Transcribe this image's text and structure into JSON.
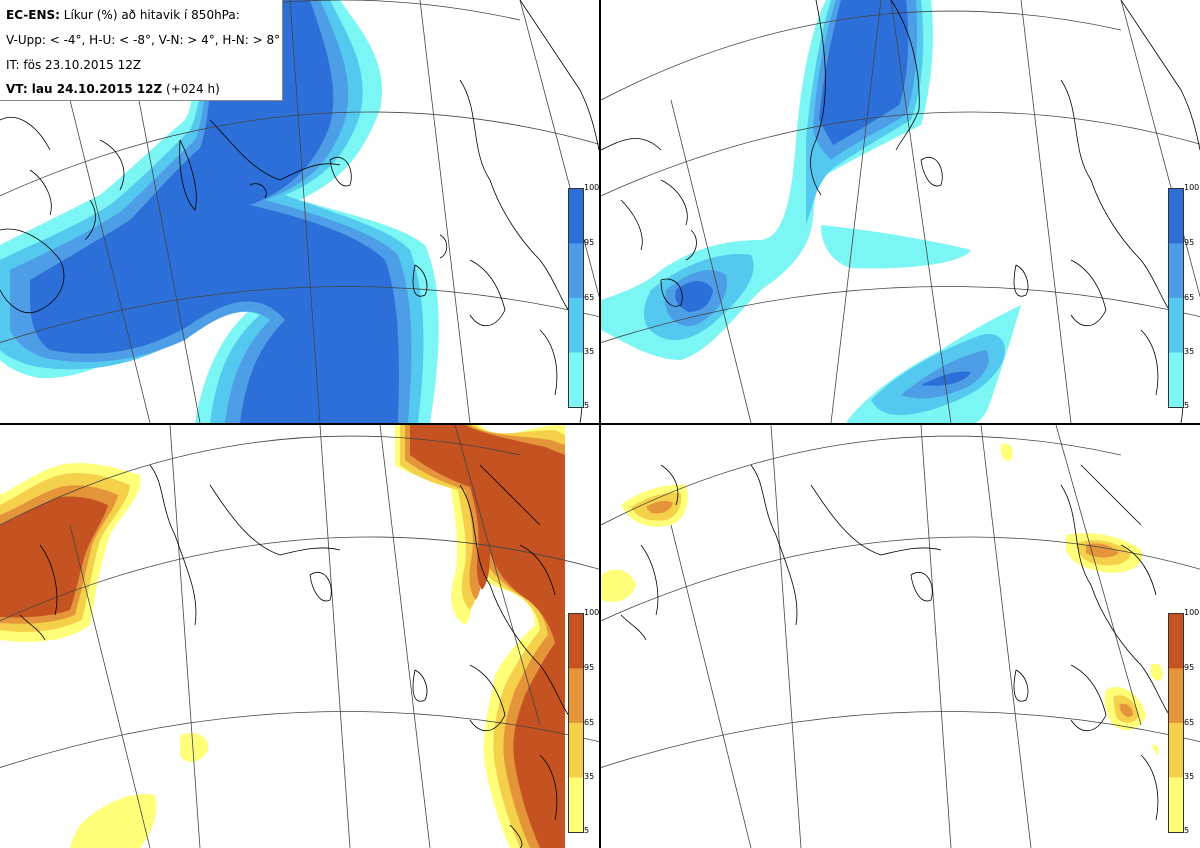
{
  "header": {
    "line1_bold": "EC-ENS:",
    "line1_rest": "Líkur (%) að hitavik í 850hPa:",
    "line2": "V-Upp: < -4°, H-U: < -8°, V-N: > 4°, H-N: > 8°",
    "line3": "IT: fös 23.10.2015 12Z",
    "line4_bold": "VT: lau 24.10.2015 12Z",
    "line4_rest": "(+024 h)"
  },
  "colorbar_levels": [
    "100",
    "95",
    "65",
    "35",
    "5"
  ],
  "colors": {
    "blue_5": "#7cf5f5",
    "blue_35": "#55c8ef",
    "blue_65": "#4d9ee6",
    "blue_95": "#2c6fd8",
    "orange_5": "#ffff7a",
    "orange_35": "#f5d04a",
    "orange_65": "#e4953a",
    "orange_95": "#c55322"
  },
  "panels": [
    {
      "id": "top-left",
      "scheme": "blue"
    },
    {
      "id": "top-right",
      "scheme": "blue"
    },
    {
      "id": "bottom-left",
      "scheme": "orange"
    },
    {
      "id": "bottom-right",
      "scheme": "orange"
    }
  ]
}
